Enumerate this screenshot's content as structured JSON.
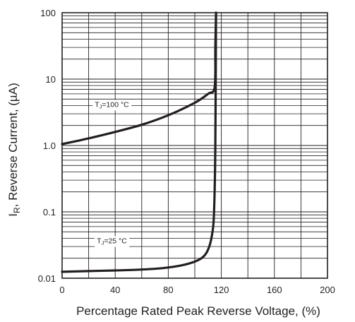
{
  "chart_data": {
    "type": "line",
    "title": "",
    "xlabel": "Percentage Rated Peak Reverse Voltage, (%)",
    "ylabel_main": "I",
    "ylabel_sub": "R",
    "ylabel_rest": ", Reverse Current, (µA)",
    "xscale": "linear",
    "yscale": "log",
    "xlim": [
      0,
      200
    ],
    "ylim": [
      0.01,
      100
    ],
    "grid": true,
    "legend": "none",
    "xticks": [
      0,
      40,
      80,
      120,
      160,
      200
    ],
    "xtick_labels": [
      "0",
      "40",
      "80",
      "120",
      "160",
      "200"
    ],
    "yticks": [
      0.01,
      0.1,
      1,
      10,
      100
    ],
    "ytick_labels": [
      "0.01",
      "0.1",
      "1.0",
      "10",
      "100"
    ],
    "series": [
      {
        "label_prefix": "T",
        "label_sub": "J",
        "label_rest": "=100 °C",
        "color": "#231f20",
        "x": [
          0,
          20,
          40,
          60,
          80,
          100,
          110,
          115,
          115.5,
          116
        ],
        "y": [
          1.05,
          1.28,
          1.6,
          2.05,
          2.85,
          4.4,
          6.0,
          7.6,
          30,
          100
        ]
      },
      {
        "label_prefix": "T",
        "label_sub": "J",
        "label_rest": "=25 °C",
        "color": "#231f20",
        "x": [
          0,
          20,
          40,
          60,
          80,
          95,
          105,
          110,
          113,
          114.5,
          115.5,
          116
        ],
        "y": [
          0.0125,
          0.0128,
          0.0131,
          0.0135,
          0.0145,
          0.0165,
          0.02,
          0.027,
          0.045,
          0.1,
          1.0,
          100
        ]
      }
    ],
    "colors": {
      "line": "#231f20",
      "grid": "#231f20",
      "background": "#ffffff"
    }
  }
}
